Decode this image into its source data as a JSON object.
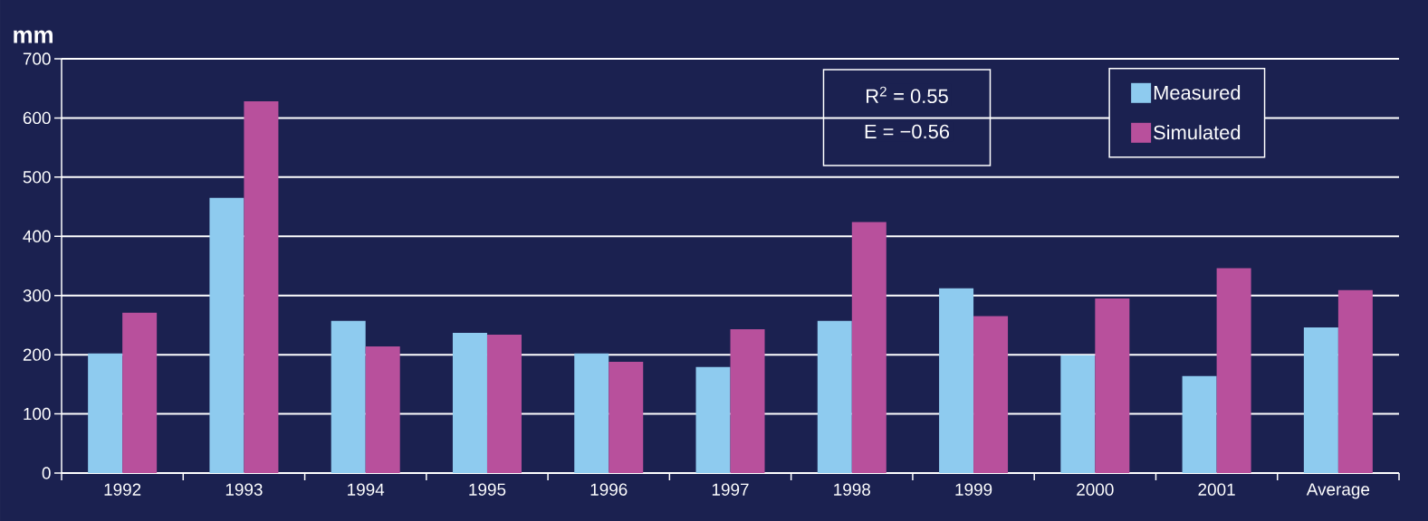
{
  "chart_data": {
    "type": "bar",
    "ylabel": "mm",
    "categories": [
      "1992",
      "1993",
      "1994",
      "1995",
      "1996",
      "1997",
      "1998",
      "1999",
      "2000",
      "2001",
      "Average"
    ],
    "series": [
      {
        "name": "Measured",
        "color": "#8ecbef",
        "values": [
          202,
          465,
          257,
          237,
          202,
          179,
          257,
          312,
          199,
          164,
          246
        ]
      },
      {
        "name": "Simulated",
        "color": "#b8509c",
        "values": [
          271,
          628,
          214,
          234,
          188,
          243,
          424,
          265,
          295,
          346,
          309
        ]
      }
    ],
    "ylim": [
      0,
      700
    ],
    "yticks": [
      0,
      100,
      200,
      300,
      400,
      500,
      600,
      700
    ],
    "grid": "y",
    "legend": "top right",
    "annotations": [
      "R$^{2}$ = 0.55",
      "E = −0.56"
    ]
  }
}
